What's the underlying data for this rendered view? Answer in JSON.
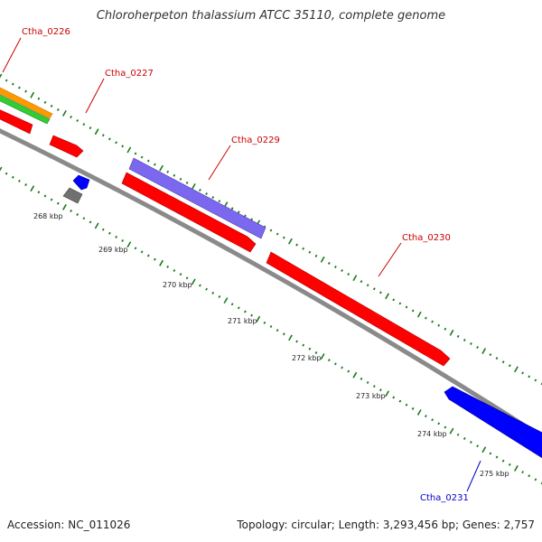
{
  "title": "Chloroherpeton thalassium ATCC 35110, complete genome",
  "footer": {
    "accession": "Accession: NC_011026",
    "summary": "Topology: circular; Length: 3,293,456 bp; Genes: 2,757"
  },
  "colors": {
    "backbone": "#8a8a8a",
    "tick": "#1a7a1a",
    "forward_gene": "#ff0000",
    "reverse_gene": "#0000ff",
    "purple_gene": "#7b68ee",
    "orange_gene": "#ff9900",
    "green_gene": "#33cc33",
    "gray_gene": "#707070",
    "label_red": "#cc0000",
    "label_blue": "#0000cc"
  },
  "scale_labels": [
    "268 kbp",
    "269 kbp",
    "270 kbp",
    "271 kbp",
    "272 kbp",
    "273 kbp",
    "274 kbp",
    "275 kbp"
  ],
  "gene_labels": [
    {
      "text": "Ctha_0226",
      "color": "#cc0000"
    },
    {
      "text": "Ctha_0227",
      "color": "#cc0000"
    },
    {
      "text": "Ctha_0229",
      "color": "#cc0000"
    },
    {
      "text": "Ctha_0230",
      "color": "#cc0000"
    },
    {
      "text": "Ctha_0231",
      "color": "#0000cc"
    }
  ]
}
